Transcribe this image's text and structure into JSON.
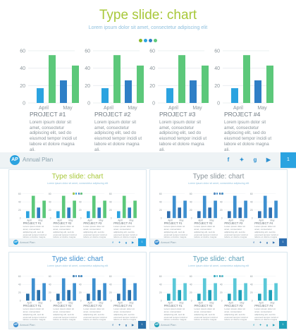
{
  "deck": {
    "title": "Type slide: chart",
    "subtitle": "Lorem ipsum dolor sit amet, consectetur adipiscing elit",
    "footer_label": "Annual Plan",
    "logo_text": "AP",
    "page_number": "1",
    "socials": [
      {
        "icon": "facebook-icon",
        "glyph": "f"
      },
      {
        "icon": "twitter-icon",
        "glyph": "✦"
      },
      {
        "icon": "google-plus-icon",
        "glyph": "g"
      },
      {
        "icon": "youtube-icon",
        "glyph": "▶"
      }
    ],
    "projects": [
      {
        "title": "PROJECT #1",
        "text": "Lorem ipsum dolor sit amet, consectetur adipiscing elit, sed do eiusmod tempor incidi ut labore et dolore magna ali."
      },
      {
        "title": "PROJECT #2",
        "text": "Lorem ipsum dolor sit amet, consectetur adipiscing elit, sed do eiusmod tempor incidi ut labore et dolore magna ali."
      },
      {
        "title": "PROJECT #3",
        "text": "Lorem ipsum dolor sit amet, consectetur adipiscing elit, sed do eiusmod tempor incidi ut labore et dolore magna ali."
      },
      {
        "title": "PROJECT #4",
        "text": "Lorem ipsum dolor sit amet, consectetur adipiscing elit, sed do eiusmod tempor incidi ut labore et dolore magna ali."
      }
    ]
  },
  "chart_data": {
    "type": "bar",
    "categories": [
      "April",
      "May"
    ],
    "ylim": [
      0,
      60
    ],
    "yticks": [
      0,
      20,
      40,
      60
    ],
    "grid": true,
    "series_values": [
      17,
      55,
      26,
      43
    ],
    "count": 4
  },
  "themes": [
    {
      "name": "green",
      "title_color": "#a8c83a",
      "bars": [
        "#2ba3e0",
        "#5cc87a",
        "#2f7fc6",
        "#5cc87a"
      ],
      "footer_logo": "#2ba3e0",
      "footer_tab": "#2ba3e0",
      "social_color": "#2b8fd0",
      "dots": [
        "#8ab82a",
        "#2ba3e0",
        "#2f7fc6",
        "#5cc87a"
      ]
    },
    {
      "name": "blue",
      "title_color": "#8a949a",
      "bars": [
        "#2f6fb0",
        "#3d8fd0",
        "#2f6fb0",
        "#3d8fd0"
      ],
      "footer_logo": "#3d8fd0",
      "footer_tab": "#2f6fb0",
      "social_color": "#2f6fb0",
      "dots": [
        "#2f6fb0",
        "#3d8fd0",
        "#2f6fb0",
        "#3d8fd0"
      ]
    },
    {
      "name": "navy",
      "title_color": "#3d8fd0",
      "bars": [
        "#2a6fa8",
        "#3d8fd0",
        "#2a6fa8",
        "#3d8fd0"
      ],
      "footer_logo": "#3d8fd0",
      "footer_tab": "#2a6fa8",
      "social_color": "#2a6fa8",
      "dots": [
        "#2a6fa8",
        "#3d8fd0",
        "#2a6fa8",
        "#3d8fd0"
      ]
    },
    {
      "name": "teal",
      "title_color": "#5a9fb8",
      "bars": [
        "#1f9fb8",
        "#5ac8d8",
        "#1f9fb8",
        "#5ac8d8"
      ],
      "footer_logo": "#1f9fb8",
      "footer_tab": "#1f9fb8",
      "social_color": "#1f9fb8",
      "dots": [
        "#1f9fb8",
        "#5ac8d8",
        "#1f9fb8",
        "#5ac8d8"
      ]
    }
  ]
}
